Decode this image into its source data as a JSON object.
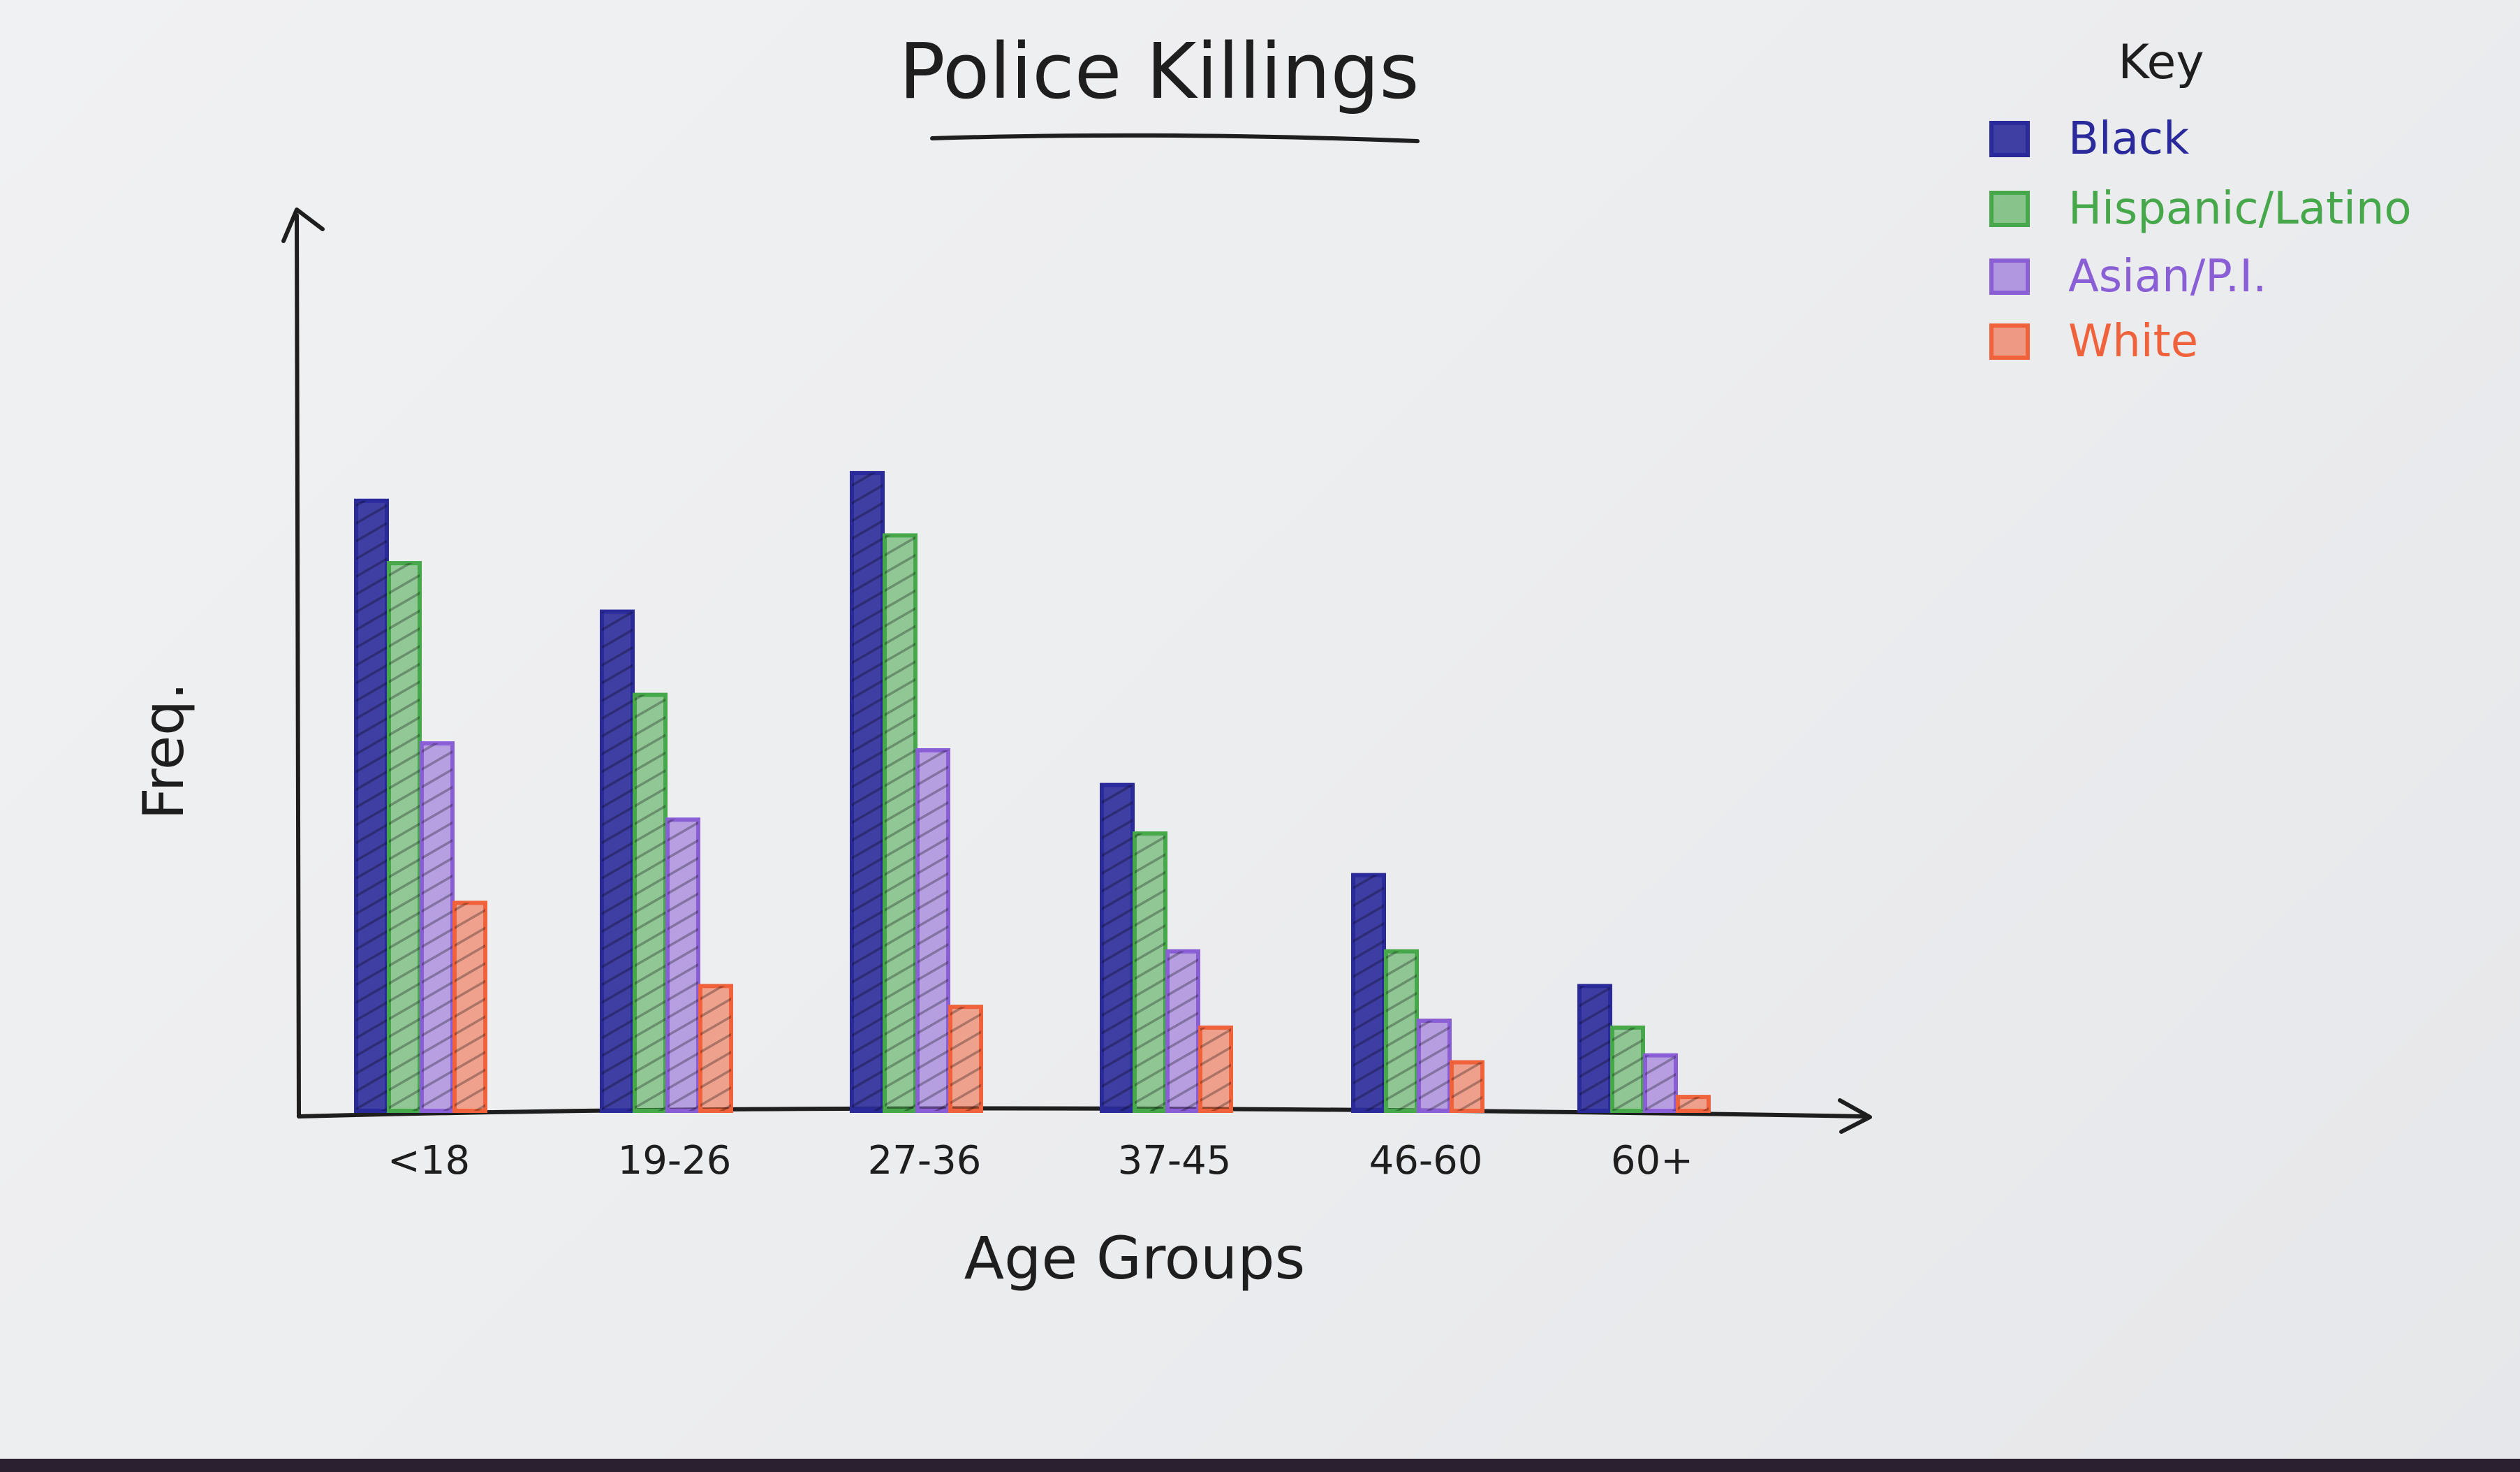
{
  "chart_data": {
    "type": "bar",
    "title": "Police Killings",
    "xlabel": "Age Groups",
    "ylabel": "Freq.",
    "categories": [
      "<18",
      "19-26",
      "27-36",
      "37-45",
      "46-60",
      "60+"
    ],
    "series": [
      {
        "name": "Black",
        "color": "#2b2a9a",
        "values": [
          88,
          72,
          92,
          47,
          34,
          18
        ]
      },
      {
        "name": "Hispanic/Latino",
        "color": "#46a84a",
        "values": [
          79,
          60,
          83,
          40,
          23,
          12
        ]
      },
      {
        "name": "Asian/P.I.",
        "color": "#8a5fd6",
        "values": [
          53,
          42,
          52,
          23,
          13,
          8
        ]
      },
      {
        "name": "White",
        "color": "#f0623c",
        "values": [
          30,
          18,
          15,
          12,
          7,
          2
        ]
      }
    ],
    "ylim": [
      0,
      130
    ],
    "grid": false,
    "legend": {
      "title": "Key",
      "placement": "top-right"
    }
  }
}
